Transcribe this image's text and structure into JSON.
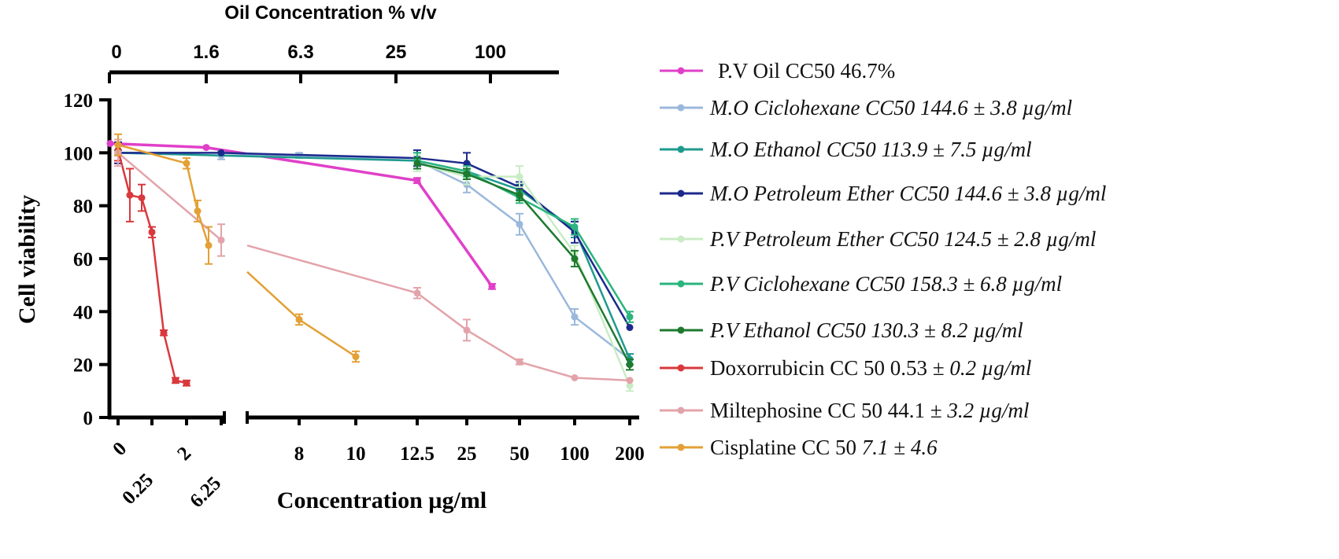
{
  "chart_data": {
    "type": "line",
    "title": "",
    "xlabel": "Concentration µg/ml",
    "ylabel": "Cell viability",
    "top_axis_label": "Oil Concentration % v/v",
    "ylim": [
      0,
      120
    ],
    "y_ticks": [
      "0",
      "20",
      "40",
      "60",
      "80",
      "100",
      "120"
    ],
    "x_ticks_left": [
      "0",
      "0.25",
      "2",
      "6.25"
    ],
    "x_ticks_right": [
      "8",
      "10",
      "12.5",
      "25",
      "50",
      "100",
      "200"
    ],
    "top_ticks": [
      "0",
      "1.6",
      "6.3",
      "25",
      "100"
    ],
    "legend_position": "right",
    "series": [
      {
        "name": "P.V Oil CC50 46.7%",
        "name_plain": "P.V Oil CC50 46.7%",
        "name_italic": "",
        "color": "#e040c8",
        "points": [
          {
            "x": "0",
            "y": 103.5,
            "err": 0
          },
          {
            "x": "1.6",
            "y": 102,
            "err": 0
          },
          {
            "x": "12.5",
            "y": 89.5,
            "err": 1
          },
          {
            "x": "25",
            "y": 49.5,
            "err": 1
          }
        ]
      },
      {
        "name": "M.O Ciclohexane  CC50 144.6 ± 3.8 µg/ml",
        "name_plain": "",
        "name_italic": "M.O Ciclohexane  CC50 144.6 ± 3.8 µg/ml",
        "color": "#9bb8dc",
        "points": [
          {
            "x": "0",
            "y": 100,
            "err": 1
          },
          {
            "x": "6.25",
            "y": 99,
            "err": 1.5
          },
          {
            "x": "8",
            "y": 99,
            "err": 1
          },
          {
            "x": "12.5",
            "y": 97,
            "err": 2
          },
          {
            "x": "25",
            "y": 88,
            "err": 3
          },
          {
            "x": "50",
            "y": 73,
            "err": 4
          },
          {
            "x": "100",
            "y": 38,
            "err": 3
          },
          {
            "x": "200",
            "y": 22,
            "err": 2
          }
        ]
      },
      {
        "name": "M.O Ethanol CC50 113.9 ± 7.5 µg/ml",
        "name_plain": "",
        "name_italic": "M.O Ethanol CC50 113.9 ± 7.5 µg/ml",
        "color": "#1f9a8e",
        "points": [
          {
            "x": "0",
            "y": 100,
            "err": 1
          },
          {
            "x": "12.5",
            "y": 97,
            "err": 3
          },
          {
            "x": "25",
            "y": 93,
            "err": 3
          },
          {
            "x": "50",
            "y": 86,
            "err": 2
          },
          {
            "x": "100",
            "y": 71,
            "err": 3
          },
          {
            "x": "200",
            "y": 22,
            "err": 2
          }
        ]
      },
      {
        "name": "M.O Petroleum Ether CC50 144.6 ± 3.8 µg/ml",
        "name_plain": "",
        "name_italic": "M.O Petroleum Ether CC50 144.6 ± 3.8 µg/ml",
        "color": "#1c2a8c",
        "points": [
          {
            "x": "0",
            "y": 100,
            "err": 4
          },
          {
            "x": "6.25",
            "y": 100,
            "err": 0
          },
          {
            "x": "12.5",
            "y": 98,
            "err": 3
          },
          {
            "x": "25",
            "y": 96,
            "err": 4
          },
          {
            "x": "50",
            "y": 87,
            "err": 2
          },
          {
            "x": "100",
            "y": 70,
            "err": 4
          },
          {
            "x": "200",
            "y": 34,
            "err": 0
          }
        ]
      },
      {
        "name": "P.V Petroleum Ether CC50 124.5 ± 2.8 µg/ml",
        "name_plain": "",
        "name_italic": "P.V Petroleum Ether CC50 124.5 ± 2.8 µg/ml",
        "color": "#c8ecc4",
        "points": [
          {
            "x": "12.5",
            "y": 96,
            "err": 3
          },
          {
            "x": "25",
            "y": 91,
            "err": 3
          },
          {
            "x": "50",
            "y": 91,
            "err": 4
          },
          {
            "x": "100",
            "y": 62,
            "err": 3
          },
          {
            "x": "200",
            "y": 12,
            "err": 2
          }
        ]
      },
      {
        "name": "P.V Ciclohexane CC50 158.3 ± 6.8 µg/ml",
        "name_plain": "",
        "name_italic": "P.V Ciclohexane CC50 158.3 ± 6.8 µg/ml",
        "color": "#2ab57e",
        "points": [
          {
            "x": "12.5",
            "y": 97,
            "err": 3
          },
          {
            "x": "25",
            "y": 93,
            "err": 2
          },
          {
            "x": "50",
            "y": 83,
            "err": 2
          },
          {
            "x": "100",
            "y": 72,
            "err": 3
          },
          {
            "x": "200",
            "y": 38,
            "err": 2
          }
        ]
      },
      {
        "name": "P.V Ethanol CC50 130.3 ± 8.2 µg/ml",
        "name_plain": "",
        "name_italic": "P.V Ethanol CC50 130.3 ± 8.2 µg/ml",
        "color": "#1e7a2e",
        "points": [
          {
            "x": "12.5",
            "y": 96,
            "err": 2
          },
          {
            "x": "25",
            "y": 92,
            "err": 2
          },
          {
            "x": "50",
            "y": 84,
            "err": 2
          },
          {
            "x": "100",
            "y": 60,
            "err": 3
          },
          {
            "x": "200",
            "y": 20,
            "err": 2
          }
        ]
      },
      {
        "name": "Doxorrubicin CC 50 0.53 ± 0.2 µg/ml",
        "name_plain": "Doxorrubicin CC 50 0.53 ",
        "name_italic": "± 0.2 µg/ml",
        "color": "#d9383c",
        "points": [
          {
            "x": "0",
            "y": 101,
            "err": 4
          },
          {
            "x": "0.06",
            "y": 84,
            "err": 10
          },
          {
            "x": "0.125",
            "y": 83,
            "err": 5
          },
          {
            "x": "0.25",
            "y": 70,
            "err": 2
          },
          {
            "x": "0.5",
            "y": 32,
            "err": 1
          },
          {
            "x": "1",
            "y": 14,
            "err": 1
          },
          {
            "x": "2",
            "y": 13,
            "err": 1
          }
        ]
      },
      {
        "name": "Miltephosine CC 50 44.1 ± 3.2 µg/ml",
        "name_plain": "Miltephosine CC 50 44.1 ",
        "name_italic": "± 3.2 µg/ml",
        "color": "#e3a3aa",
        "points": [
          {
            "x": "0",
            "y": 100,
            "err": 5
          },
          {
            "x": "6.25",
            "y": 67,
            "err": 6
          },
          {
            "x": "12.5",
            "y": 47,
            "err": 2
          },
          {
            "x": "25",
            "y": 33,
            "err": 4
          },
          {
            "x": "50",
            "y": 21,
            "err": 1
          },
          {
            "x": "100",
            "y": 15,
            "err": 0
          },
          {
            "x": "200",
            "y": 14,
            "err": 0
          }
        ]
      },
      {
        "name": "Cisplatine CC 50 7.1 ± 4.6",
        "name_plain": "Cisplatine CC 50 ",
        "name_italic": "7.1 ± 4.6",
        "color": "#e3a035",
        "points": [
          {
            "x": "0",
            "y": 103,
            "err": 4
          },
          {
            "x": "2",
            "y": 96,
            "err": 2
          },
          {
            "x": "3",
            "y": 78,
            "err": 4
          },
          {
            "x": "4",
            "y": 65,
            "err": 7
          },
          {
            "x": "8",
            "y": 37,
            "err": 2
          },
          {
            "x": "10",
            "y": 23,
            "err": 2
          }
        ]
      }
    ]
  }
}
